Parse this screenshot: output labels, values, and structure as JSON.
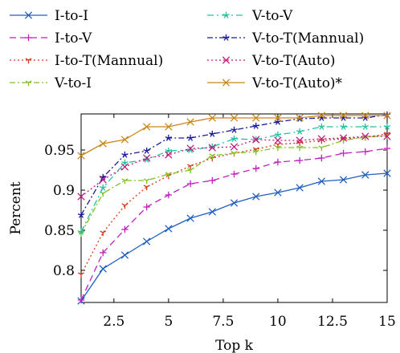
{
  "chart_data": {
    "type": "line",
    "xlabel": "Top k",
    "ylabel": "Percent",
    "xlim": [
      1,
      15
    ],
    "ylim": [
      0.76,
      0.995
    ],
    "xticks": [
      2.5,
      5,
      7.5,
      10,
      12.5,
      15
    ],
    "xtick_labels": [
      "2.5",
      "5",
      "7.5",
      "10",
      "12.5",
      "15"
    ],
    "yticks": [
      0.8,
      0.85,
      0.9,
      0.95
    ],
    "ytick_labels": [
      "0.8",
      "0.85",
      "0.9",
      "0.95"
    ],
    "legend_position": "top",
    "x": [
      1,
      2,
      3,
      4,
      5,
      6,
      7,
      8,
      9,
      10,
      11,
      12,
      13,
      14,
      15
    ],
    "series": [
      {
        "name": "I-to-I",
        "color": "#1f5fbf",
        "dash": "",
        "marker": "x",
        "values": [
          0.762,
          0.802,
          0.819,
          0.836,
          0.852,
          0.865,
          0.873,
          0.884,
          0.892,
          0.897,
          0.903,
          0.911,
          0.913,
          0.919,
          0.921
        ]
      },
      {
        "name": "I-to-V",
        "color": "#c020c0",
        "dash": "8,5",
        "marker": "plus",
        "values": [
          0.763,
          0.822,
          0.851,
          0.879,
          0.894,
          0.908,
          0.912,
          0.92,
          0.927,
          0.935,
          0.937,
          0.94,
          0.946,
          0.948,
          0.952
        ]
      },
      {
        "name": "I-to-T(Mannual)",
        "color": "#d43a1a",
        "dash": "2,3",
        "marker": "tri",
        "values": [
          0.795,
          0.847,
          0.881,
          0.904,
          0.918,
          0.93,
          0.94,
          0.946,
          0.951,
          0.957,
          0.959,
          0.962,
          0.964,
          0.966,
          0.97
        ]
      },
      {
        "name": "V-to-I",
        "color": "#80c020",
        "dash": "7,3,2,3",
        "marker": "tri",
        "values": [
          0.846,
          0.896,
          0.912,
          0.912,
          0.92,
          0.925,
          0.943,
          0.946,
          0.948,
          0.953,
          0.953,
          0.953,
          0.962,
          0.966,
          0.968
        ]
      },
      {
        "name": "V-to-V",
        "color": "#20c0a0",
        "dash": "8,4,2,4",
        "marker": "star",
        "values": [
          0.848,
          0.903,
          0.934,
          0.938,
          0.949,
          0.95,
          0.954,
          0.964,
          0.963,
          0.969,
          0.973,
          0.979,
          0.979,
          0.979,
          0.979
        ]
      },
      {
        "name": "V-to-T(Mannual)",
        "color": "#1a1a9a",
        "dash": "7,3,2,3",
        "marker": "star",
        "values": [
          0.869,
          0.916,
          0.944,
          0.949,
          0.965,
          0.965,
          0.97,
          0.975,
          0.98,
          0.985,
          0.989,
          0.99,
          0.99,
          0.99,
          0.994
        ]
      },
      {
        "name": "V-to-T(Auto)",
        "color": "#c01a7a",
        "dash": "2,3",
        "marker": "x",
        "values": [
          0.892,
          0.913,
          0.929,
          0.94,
          0.944,
          0.952,
          0.953,
          0.954,
          0.963,
          0.962,
          0.962,
          0.964,
          0.965,
          0.967,
          0.967
        ]
      },
      {
        "name": "V-to-T(Auto)*",
        "color": "#c8861a",
        "dash": "",
        "marker": "x",
        "values": [
          0.943,
          0.958,
          0.963,
          0.979,
          0.979,
          0.985,
          0.99,
          0.99,
          0.99,
          0.99,
          0.99,
          0.993,
          0.993,
          0.993,
          0.993
        ]
      }
    ]
  }
}
